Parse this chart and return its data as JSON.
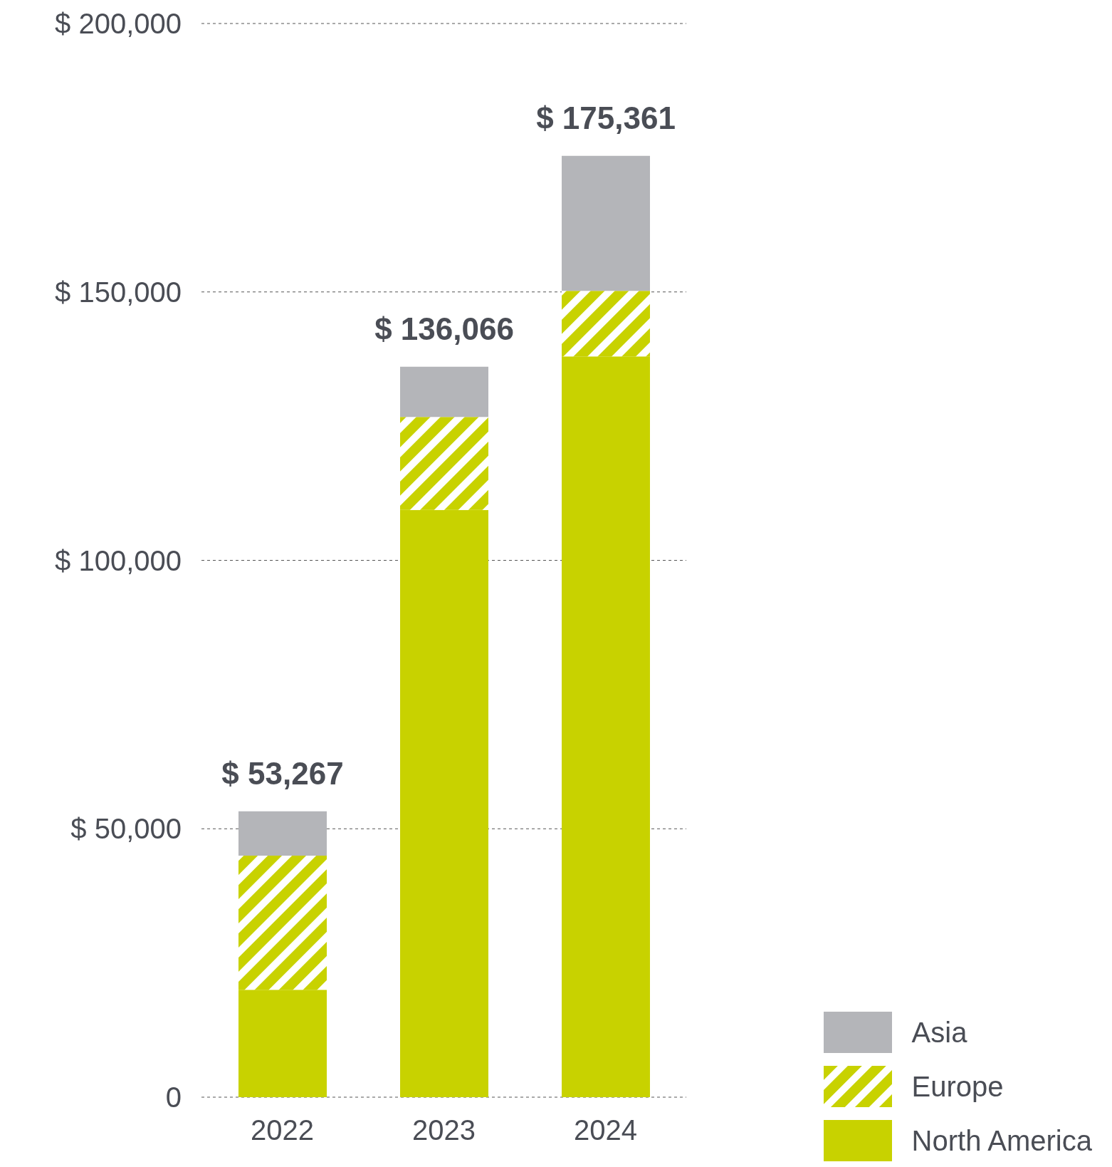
{
  "chart_data": {
    "type": "bar",
    "stacked": true,
    "categories": [
      "2022",
      "2023",
      "2024"
    ],
    "series": [
      {
        "name": "North America",
        "color": "#c8d200",
        "values": [
          20000,
          109400,
          138000
        ]
      },
      {
        "name": "Europe",
        "color": "#c8d200",
        "values": [
          25000,
          17300,
          12200
        ]
      },
      {
        "name": "Asia",
        "color": "#b4b5b9",
        "values": [
          8267,
          9366,
          25161
        ]
      }
    ],
    "totals": [
      "$ 53,267",
      "$ 136,066",
      "$ 175,361"
    ],
    "ylim": [
      0,
      200000
    ],
    "yticks": [
      {
        "value": 0,
        "label": "0"
      },
      {
        "value": 50000,
        "label": "$ 50,000"
      },
      {
        "value": 100000,
        "label": "$ 100,000"
      },
      {
        "value": 150000,
        "label": "$ 150,000"
      },
      {
        "value": 200000,
        "label": "$ 200,000"
      }
    ],
    "grid": "y",
    "legend": "bottom right"
  }
}
